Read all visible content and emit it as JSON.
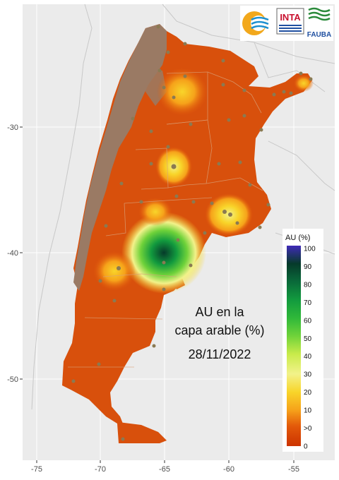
{
  "overlay": {
    "line1": "AU en la",
    "line2": "capa arable (%)",
    "date": "28/11/2022"
  },
  "logos": {
    "inta": "INTA",
    "fauba": "FAUBA"
  },
  "legend": {
    "title": "AU (%)",
    "labels": [
      "100",
      "90",
      "80",
      "70",
      "60",
      "50",
      "40",
      "30",
      "20",
      "10",
      ">0",
      "0"
    ],
    "colors": {
      "zero": "#cc3300",
      "low": "#e3590a",
      "ten": "#f6a21a",
      "twenty": "#f8d52a",
      "thirty": "#f2f28a",
      "forty": "#c8eb4a",
      "fifty": "#6fd23a",
      "sixty": "#2fb83a",
      "seventy": "#129a3e",
      "eighty": "#0a6a3a",
      "ninety": "#063a2a",
      "hundred": "#3f2ab8"
    }
  },
  "axes": {
    "x_ticks": [
      "-75",
      "-70",
      "-65",
      "-60",
      "-55"
    ],
    "y_ticks": [
      "-30",
      "-40",
      "-50"
    ],
    "xlim": [
      -76,
      -52
    ],
    "ylim": [
      -56,
      -21
    ]
  },
  "map_colors": {
    "no_data": "#9a7a64",
    "station": "#8a7a52",
    "neighbors_outline": "#c8c8c8",
    "province_border": "#d9a27a"
  }
}
